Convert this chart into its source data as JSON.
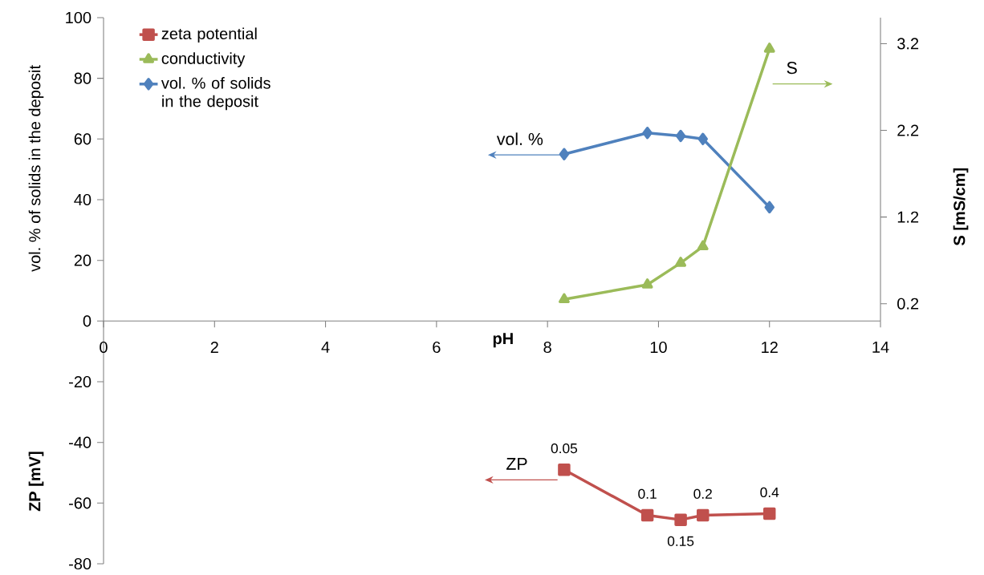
{
  "chart_data": {
    "type": "line",
    "xlabel": "pH",
    "ylabel": "vol. % of solids in the deposit",
    "y2label": "S [mS/cm]",
    "xlim": [
      0,
      14
    ],
    "xticks": [
      0,
      2,
      4,
      6,
      8,
      10,
      12,
      14
    ],
    "ylim": [
      -80,
      100
    ],
    "yticks": [
      -80,
      -60,
      -40,
      -20,
      0,
      20,
      40,
      60,
      80,
      100
    ],
    "y2lim": [
      0,
      3.5
    ],
    "y2ticks": [
      0.2,
      1.2,
      2.2,
      3.2
    ],
    "legend": "top left",
    "series": [
      {
        "name": "zeta potential",
        "color": "#c0504d",
        "marker": "square",
        "x": [
          8.3,
          9.8,
          10.4,
          10.8,
          12
        ],
        "values": [
          -49,
          -64,
          -65.5,
          -64,
          -63.5
        ]
      },
      {
        "name": "conductivity",
        "color": "#9bbb59",
        "marker": "triangle",
        "axis": "y2",
        "x": [
          8.3,
          9.8,
          10.4,
          10.8,
          12
        ],
        "values": [
          0.25,
          0.42,
          0.67,
          0.86,
          3.14
        ]
      },
      {
        "name": "vol. % of solids in the deposit",
        "color": "#4f81bd",
        "marker": "diamond",
        "x": [
          8.3,
          9.8,
          10.4,
          10.8,
          12
        ],
        "values": [
          55,
          62,
          61,
          60,
          37.5
        ]
      }
    ],
    "annotations": [
      "vol. %",
      "S",
      "ZP",
      "ZP [mV]",
      {
        "text": "0.05",
        "x": 8.3,
        "y": -49
      },
      {
        "text": "0.1",
        "x": 9.8,
        "y": -64
      },
      {
        "text": "0.15",
        "x": 10.4,
        "y": -65.5
      },
      {
        "text": "0.2",
        "x": 10.8,
        "y": -64
      },
      {
        "text": "0.4",
        "x": 12,
        "y": -63.5
      }
    ]
  }
}
